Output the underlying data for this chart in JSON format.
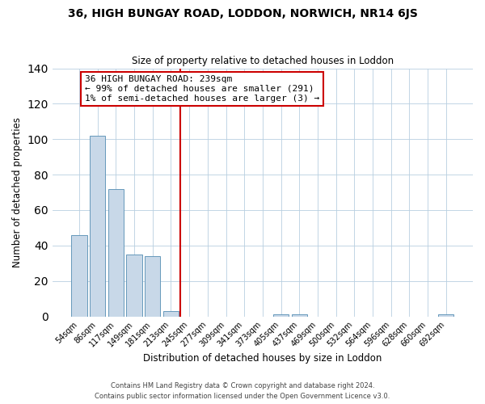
{
  "title": "36, HIGH BUNGAY ROAD, LODDON, NORWICH, NR14 6JS",
  "subtitle": "Size of property relative to detached houses in Loddon",
  "xlabel": "Distribution of detached houses by size in Loddon",
  "ylabel": "Number of detached properties",
  "bar_labels": [
    "54sqm",
    "86sqm",
    "117sqm",
    "149sqm",
    "181sqm",
    "213sqm",
    "245sqm",
    "277sqm",
    "309sqm",
    "341sqm",
    "373sqm",
    "405sqm",
    "437sqm",
    "469sqm",
    "500sqm",
    "532sqm",
    "564sqm",
    "596sqm",
    "628sqm",
    "660sqm",
    "692sqm"
  ],
  "bar_values": [
    46,
    102,
    72,
    35,
    34,
    3,
    0,
    0,
    0,
    0,
    0,
    1,
    1,
    0,
    0,
    0,
    0,
    0,
    0,
    0,
    1
  ],
  "bar_color": "#c8d8e8",
  "bar_edge_color": "#6699bb",
  "vline_x": 5.5,
  "vline_color": "#cc0000",
  "annotation_title": "36 HIGH BUNGAY ROAD: 239sqm",
  "annotation_line1": "← 99% of detached houses are smaller (291)",
  "annotation_line2": "1% of semi-detached houses are larger (3) →",
  "annotation_box_edge": "#cc0000",
  "ylim": [
    0,
    140
  ],
  "yticks": [
    0,
    20,
    40,
    60,
    80,
    100,
    120,
    140
  ],
  "footer1": "Contains HM Land Registry data © Crown copyright and database right 2024.",
  "footer2": "Contains public sector information licensed under the Open Government Licence v3.0."
}
